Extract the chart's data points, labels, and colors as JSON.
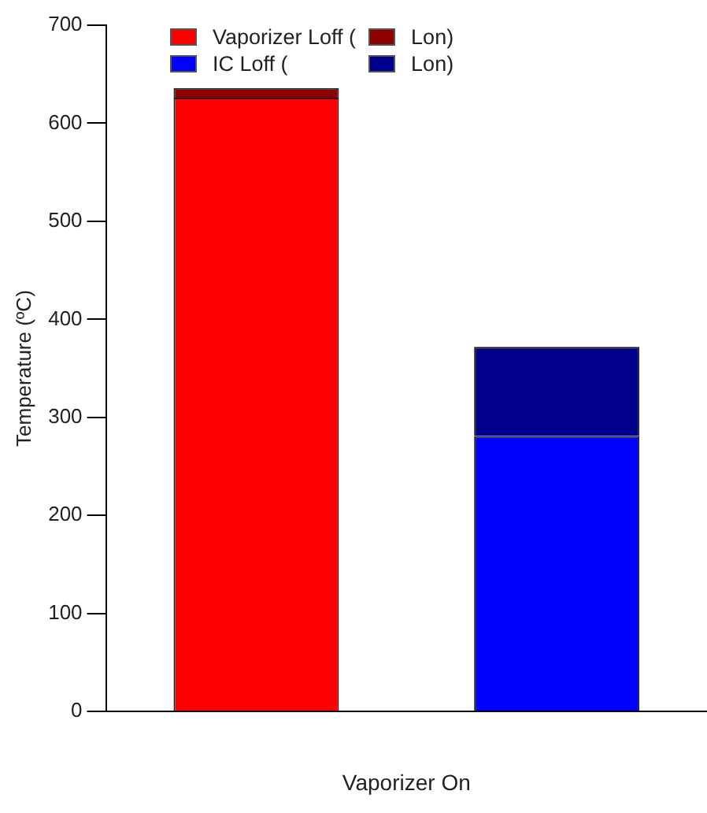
{
  "chart_data": {
    "type": "bar",
    "stacked": true,
    "xlabel": "Vaporizer On",
    "ylabel": "Temperature (ºC)",
    "categories": [
      null,
      null
    ],
    "series": [
      {
        "name": "Vaporizer Loff (",
        "color": "#ff0000",
        "values": [
          626,
          null
        ]
      },
      {
        "name": "Lon)",
        "color": "#8b0000",
        "values": [
          10,
          null
        ]
      },
      {
        "name": "IC Loff (",
        "color": "#0000ff",
        "values": [
          null,
          281
        ]
      },
      {
        "name": "Lon)",
        "color": "#00008b",
        "values": [
          null,
          91
        ]
      }
    ],
    "ylim": [
      0,
      700
    ],
    "yticks": [
      0,
      100,
      200,
      300,
      400,
      500,
      600,
      700
    ],
    "grid": false,
    "legend": "top left"
  }
}
